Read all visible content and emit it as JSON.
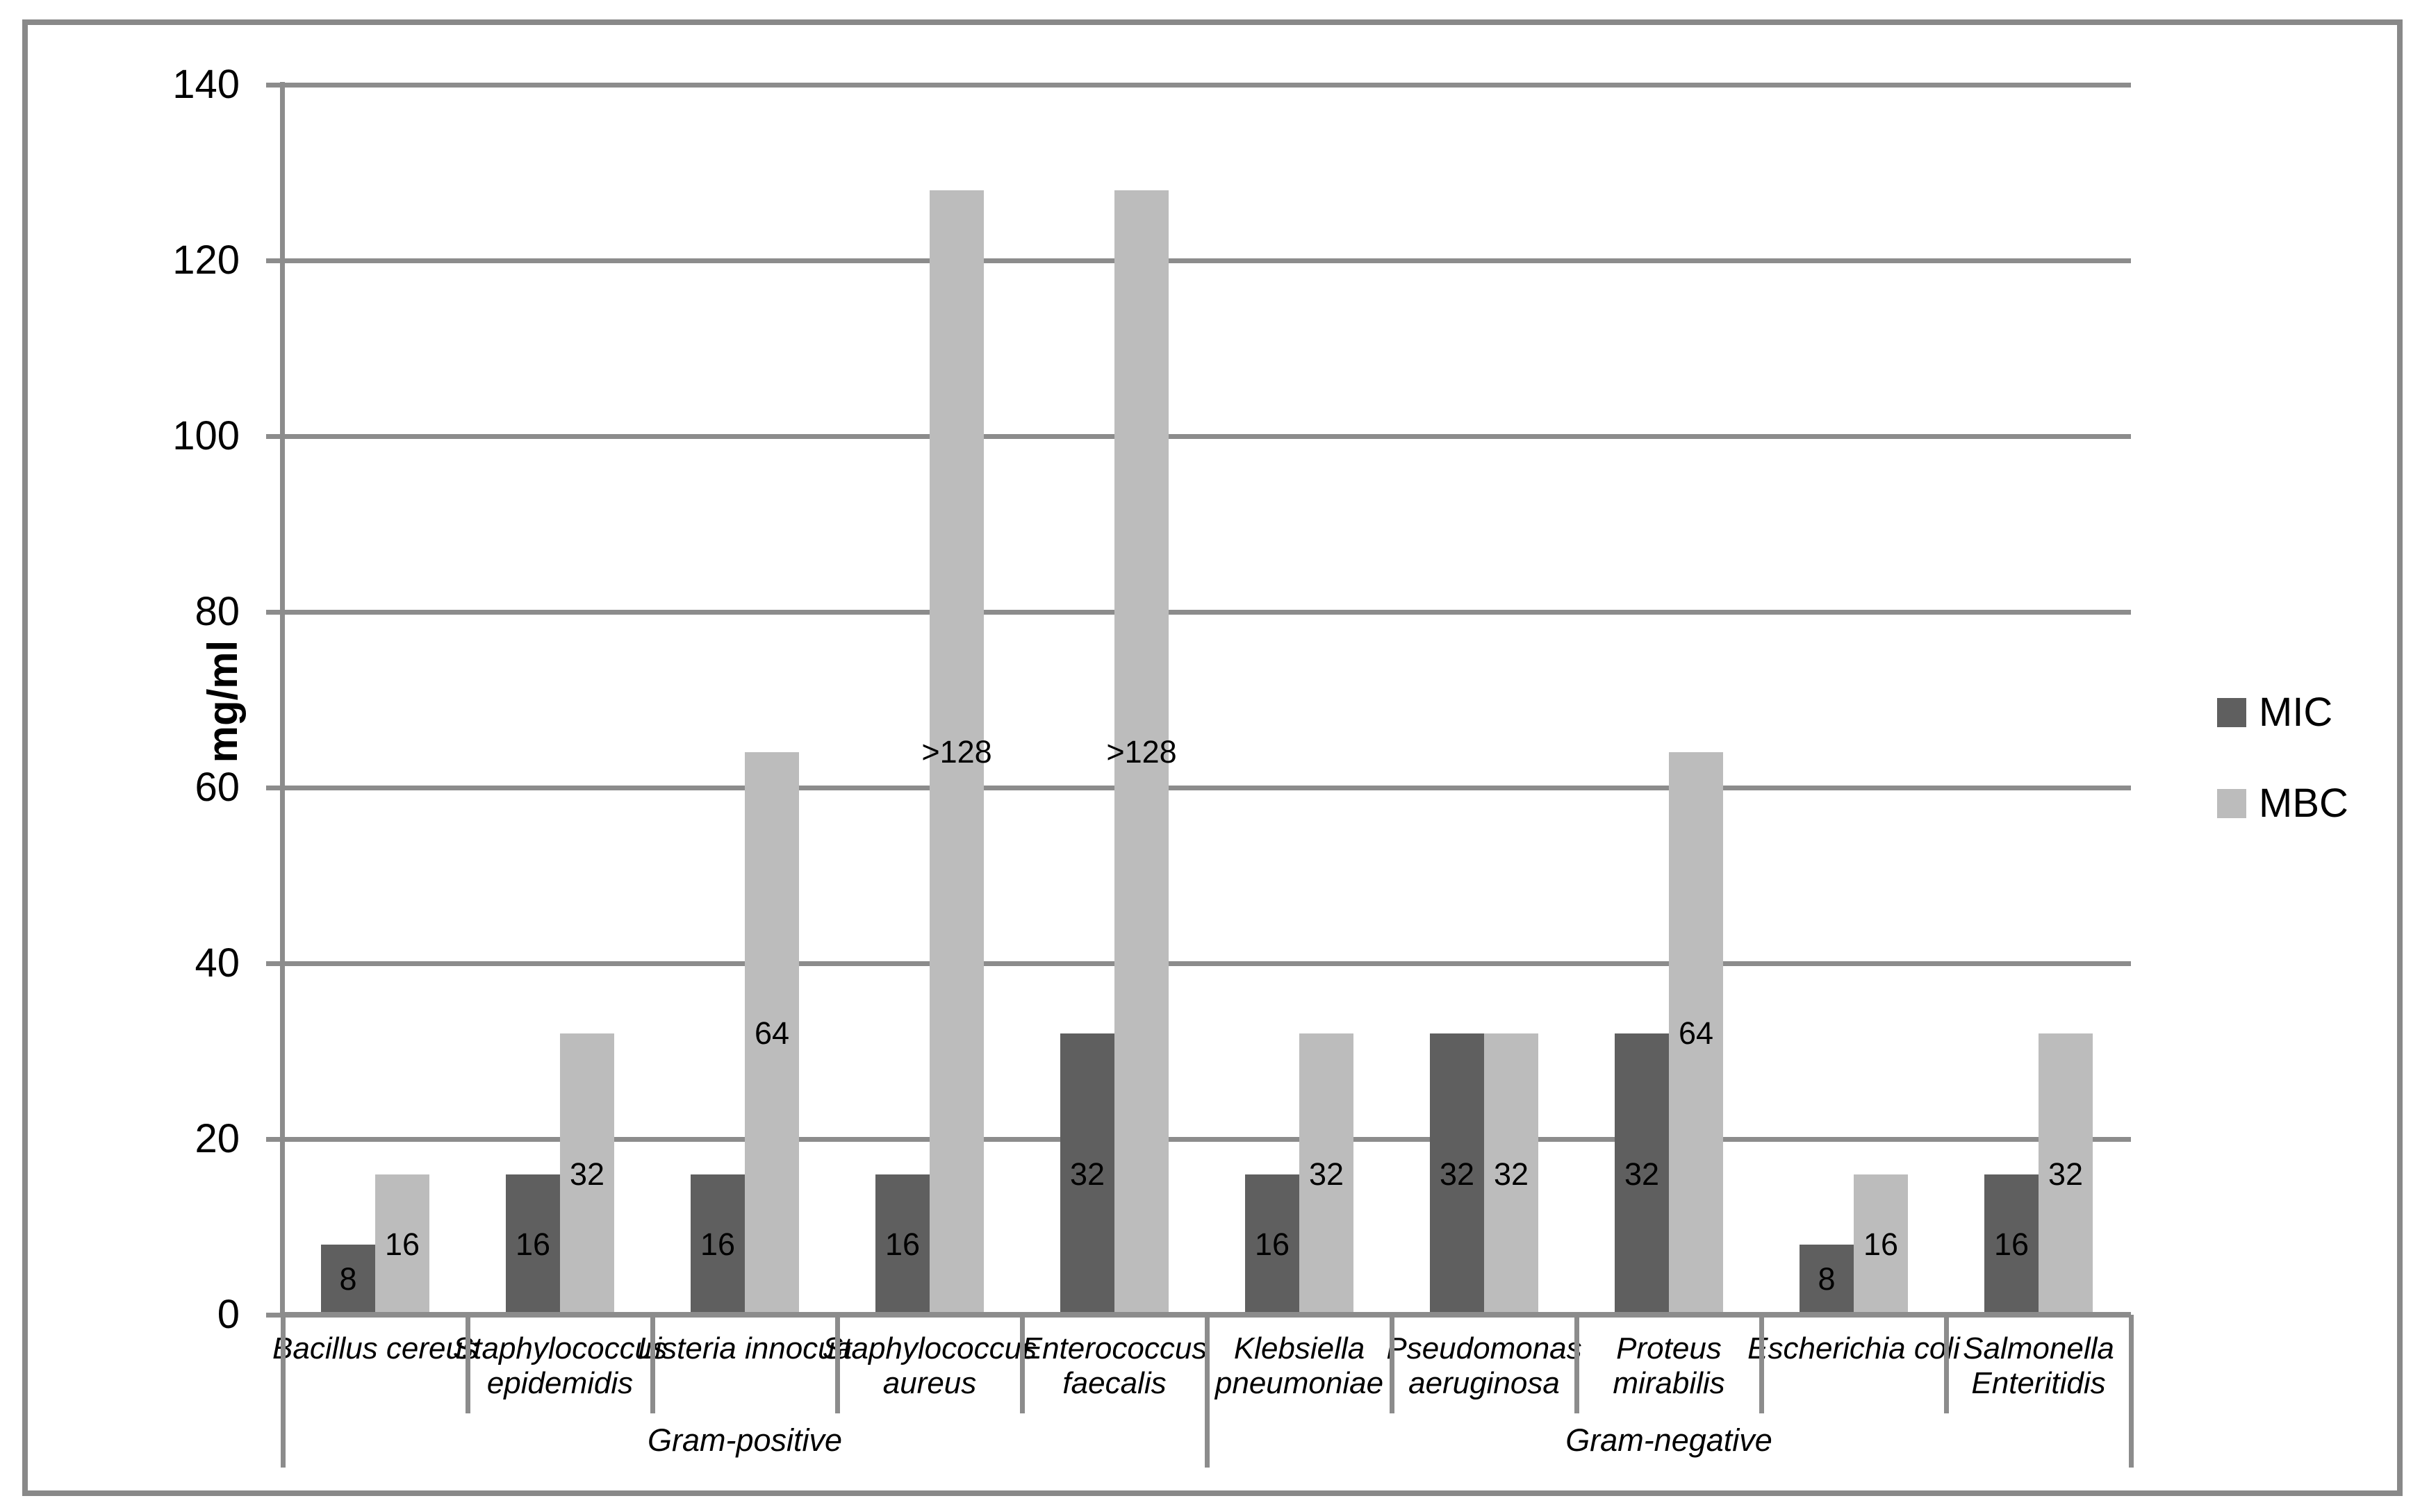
{
  "chart_data": {
    "type": "bar",
    "title": "",
    "ylabel": "mg/ml",
    "xlabel": "",
    "ylim": [
      0,
      140
    ],
    "yticks": [
      0,
      20,
      40,
      60,
      80,
      100,
      120,
      140
    ],
    "grid": true,
    "legend_position": "right-middle",
    "categories": [
      {
        "lines": [
          "Bacillus cereus"
        ],
        "group": "Gram-positive"
      },
      {
        "lines": [
          "Staphylococcus",
          "epidemidis"
        ],
        "group": "Gram-positive"
      },
      {
        "lines": [
          "Listeria innocua"
        ],
        "group": "Gram-positive"
      },
      {
        "lines": [
          "Staphylococcus",
          "aureus"
        ],
        "group": "Gram-positive"
      },
      {
        "lines": [
          "Enterococcus",
          "faecalis"
        ],
        "group": "Gram-positive"
      },
      {
        "lines": [
          "Klebsiella",
          "pneumoniae"
        ],
        "group": "Gram-negative"
      },
      {
        "lines": [
          "Pseudomonas",
          "aeruginosa"
        ],
        "group": "Gram-negative"
      },
      {
        "lines": [
          "Proteus",
          "mirabilis"
        ],
        "group": "Gram-negative"
      },
      {
        "lines": [
          "Escherichia coli"
        ],
        "group": "Gram-negative"
      },
      {
        "lines": [
          "Salmonella",
          "Enteritidis"
        ],
        "group": "Gram-negative"
      }
    ],
    "groups": [
      {
        "label": "Gram-positive",
        "start": 0,
        "end": 5
      },
      {
        "label": "Gram-negative",
        "start": 5,
        "end": 10
      }
    ],
    "series": [
      {
        "name": "MIC",
        "color": "#5f5f5f",
        "values": [
          8,
          16,
          16,
          16,
          32,
          16,
          32,
          32,
          8,
          16
        ],
        "labels": [
          "8",
          "16",
          "16",
          "16",
          "32",
          "16",
          "32",
          "32",
          "8",
          "16"
        ]
      },
      {
        "name": "MBC",
        "color": "#bcbcbc",
        "values": [
          16,
          32,
          64,
          128,
          128,
          32,
          32,
          64,
          16,
          32
        ],
        "labels": [
          "16",
          "32",
          "64",
          ">128",
          ">128",
          "32",
          "32",
          "64",
          "16",
          "32"
        ]
      }
    ],
    "colors": {
      "gridline": "#8c8c8c",
      "axis": "#8c8c8c",
      "frame_border": "#898989",
      "text": "#000000",
      "background": "#ffffff"
    }
  },
  "legend": {
    "items": [
      {
        "label": "MIC"
      },
      {
        "label": "MBC"
      }
    ]
  }
}
